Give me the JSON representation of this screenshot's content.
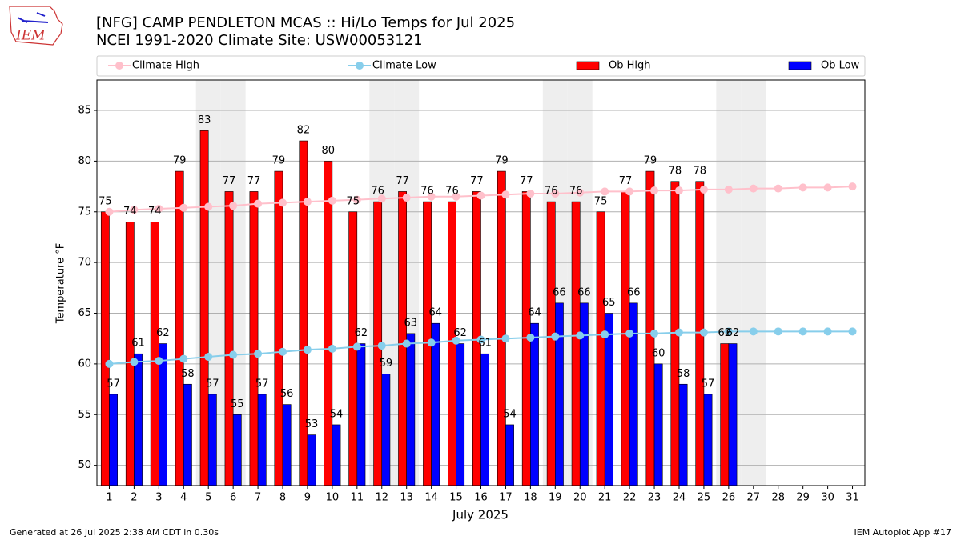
{
  "logo_text": "IEM",
  "chart_data": {
    "type": "bar_line",
    "title": "[NFG] CAMP PENDLETON MCAS :: Hi/Lo Temps for Jul 2025",
    "subtitle": "NCEI 1991-2020 Climate Site: USW00053121",
    "x_label": "July 2025",
    "y_label": "Temperature °F",
    "x": [
      1,
      2,
      3,
      4,
      5,
      6,
      7,
      8,
      9,
      10,
      11,
      12,
      13,
      14,
      15,
      16,
      17,
      18,
      19,
      20,
      21,
      22,
      23,
      24,
      25,
      26,
      27,
      28,
      29,
      30,
      31
    ],
    "xlim": [
      0.5,
      31.5
    ],
    "xticks": [
      1,
      2,
      3,
      4,
      5,
      6,
      7,
      8,
      9,
      10,
      11,
      12,
      13,
      14,
      15,
      16,
      17,
      18,
      19,
      20,
      21,
      22,
      23,
      24,
      25,
      26,
      27,
      28,
      29,
      30,
      31
    ],
    "ylim": [
      48,
      88
    ],
    "yticks": [
      50,
      55,
      60,
      65,
      70,
      75,
      80,
      85
    ],
    "grid": true,
    "shaded_days": [
      5,
      6,
      12,
      13,
      19,
      20,
      26,
      27
    ],
    "shade_color": "#eeeeee",
    "series": [
      {
        "name": "Climate High",
        "kind": "line",
        "color": "#ffc0cb",
        "values": [
          75.0,
          75.2,
          75.3,
          75.4,
          75.5,
          75.6,
          75.8,
          75.9,
          76.0,
          76.1,
          76.2,
          76.3,
          76.4,
          76.5,
          76.5,
          76.6,
          76.7,
          76.8,
          76.8,
          76.9,
          77.0,
          77.0,
          77.1,
          77.1,
          77.2,
          77.2,
          77.3,
          77.3,
          77.4,
          77.4,
          77.5
        ]
      },
      {
        "name": "Climate Low",
        "kind": "line",
        "color": "#87ceeb",
        "values": [
          60.0,
          60.2,
          60.3,
          60.5,
          60.7,
          60.9,
          61.0,
          61.2,
          61.4,
          61.5,
          61.7,
          61.8,
          62.0,
          62.1,
          62.3,
          62.4,
          62.5,
          62.6,
          62.7,
          62.8,
          62.9,
          63.0,
          63.0,
          63.1,
          63.1,
          63.2,
          63.2,
          63.2,
          63.2,
          63.2,
          63.2
        ]
      },
      {
        "name": "Ob High",
        "kind": "bar",
        "color": "#ff0000",
        "values": [
          75,
          74,
          74,
          79,
          83,
          77,
          77,
          79,
          82,
          80,
          75,
          76,
          77,
          76,
          76,
          77,
          79,
          77,
          76,
          76,
          75,
          77,
          79,
          78,
          78,
          62,
          null,
          null,
          null,
          null,
          null
        ]
      },
      {
        "name": "Ob Low",
        "kind": "bar",
        "color": "#0000ff",
        "values": [
          57,
          61,
          62,
          58,
          57,
          55,
          57,
          56,
          53,
          54,
          62,
          59,
          63,
          64,
          62,
          61,
          54,
          64,
          66,
          66,
          65,
          66,
          60,
          58,
          57,
          62,
          null,
          null,
          null,
          null,
          null
        ]
      }
    ],
    "footer_left": "Generated at 26 Jul 2025 2:38 AM CDT in 0.30s",
    "footer_right": "IEM Autoplot App #17"
  }
}
